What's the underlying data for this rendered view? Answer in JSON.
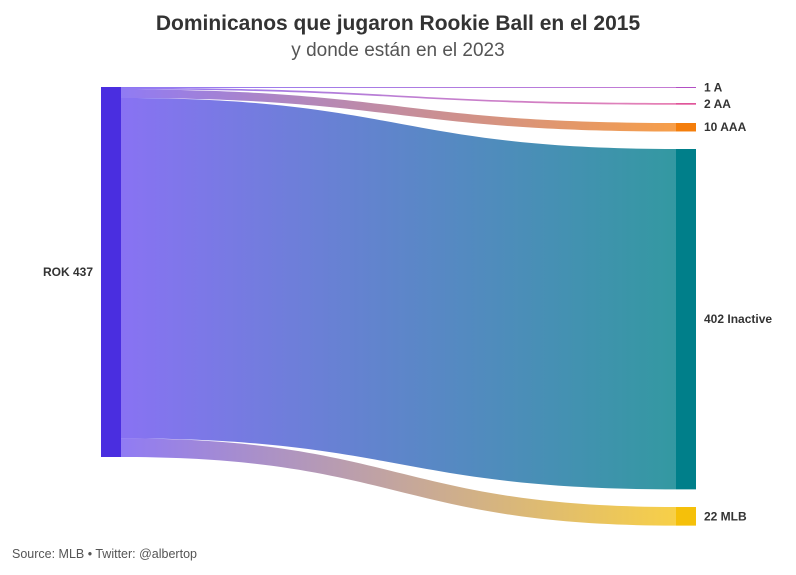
{
  "chart_data": {
    "type": "sankey",
    "title": "Dominicanos que jugaron Rookie Ball en el 2015",
    "subtitle": "y donde están en el 2023",
    "source": "Source: MLB • Twitter: @albertop",
    "source_node": {
      "name": "ROK",
      "value": 437,
      "color": "#4a2ee0"
    },
    "targets": [
      {
        "name": "A",
        "value": 1,
        "color": "#b24fc4"
      },
      {
        "name": "AA",
        "value": 2,
        "color": "#e0569a"
      },
      {
        "name": "AAA",
        "value": 10,
        "color": "#f47e0c"
      },
      {
        "name": "Inactive",
        "value": 402,
        "color": "#007f8a"
      },
      {
        "name": "MLB",
        "value": 22,
        "color": "#f5c00a"
      }
    ]
  }
}
